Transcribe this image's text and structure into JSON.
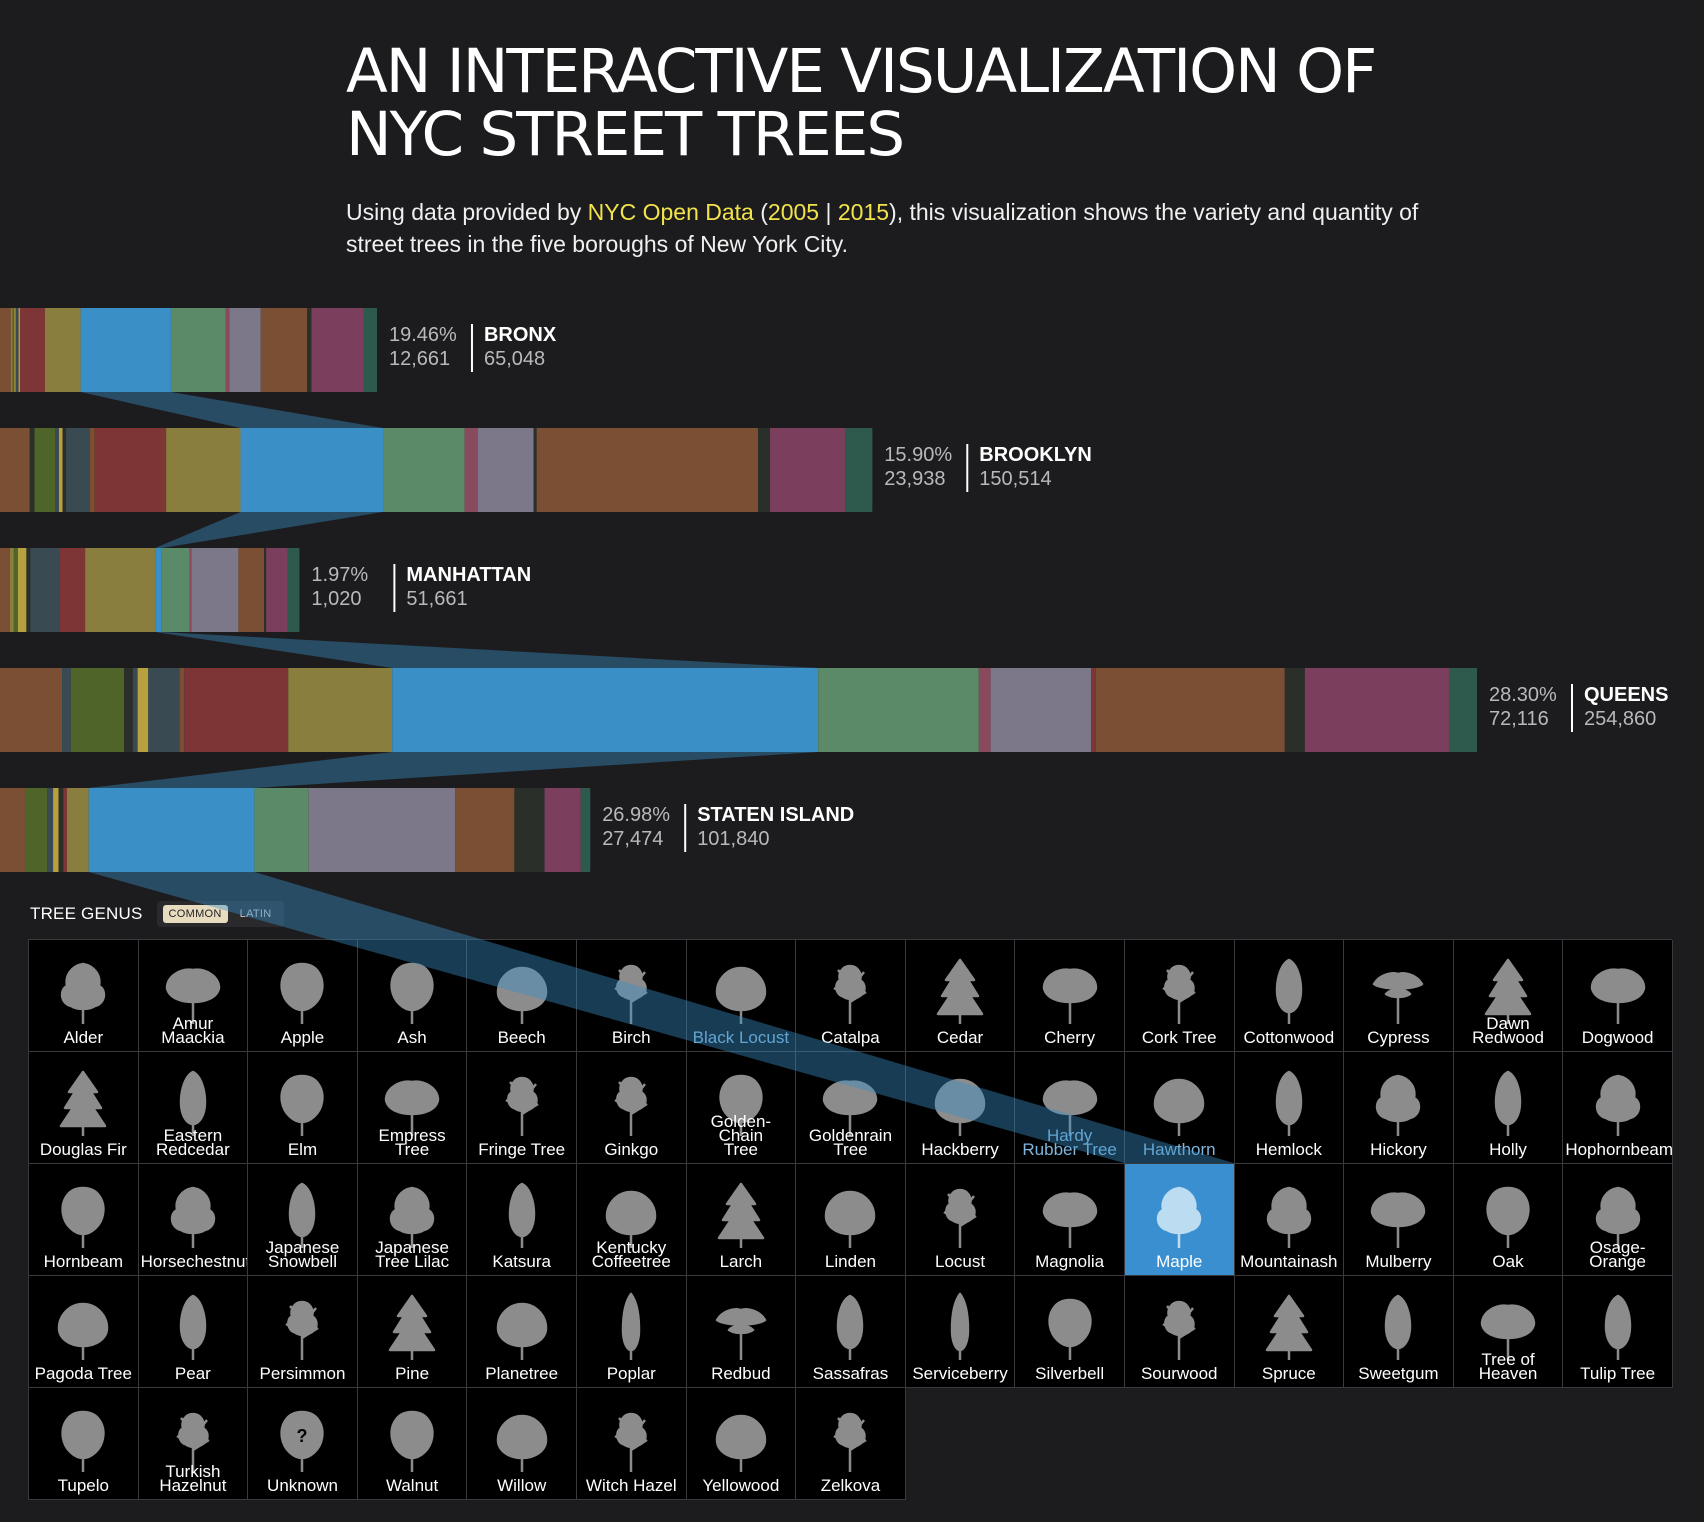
{
  "title_lines": [
    "AN INTERACTIVE VISUALIZATION OF",
    "NYC STREET TREES"
  ],
  "subtitle": {
    "pre": "Using data provided by ",
    "link_source": "NYC Open Data",
    "mid1": " (",
    "link_2005": "2005",
    "sep": " | ",
    "link_2015": "2015",
    "post": "), this visualization shows the variety and quantity of street trees in the five boroughs of New York City."
  },
  "palette": {
    "brown": "#7b4f33",
    "olive": "#8a7e3e",
    "green": "#4f6428",
    "red": "#7e3535",
    "blue": "#3a8fc6",
    "sage": "#5b8a68",
    "lavender": "#7c7789",
    "plum": "#7b3f5d",
    "teal": "#2e5a4e",
    "dark": "#2a2f2a",
    "slate": "#3a4a52",
    "mustard": "#b7a040",
    "rose": "#8a4a5e"
  },
  "chart_data": {
    "type": "bar",
    "orientation": "horizontal-stacked",
    "highlighted_genus": "Maple",
    "boroughs": [
      {
        "name": "BRONX",
        "pct": "19.46%",
        "count": "12,661",
        "total": "65,048",
        "total_value": 65048,
        "highlight_value": 12661,
        "segments": [
          {
            "c": "brown",
            "v": 1500
          },
          {
            "c": "olive",
            "v": 300
          },
          {
            "c": "green",
            "v": 200
          },
          {
            "c": "mustard",
            "v": 200
          },
          {
            "c": "slate",
            "v": 400
          },
          {
            "c": "mustard",
            "v": 200
          },
          {
            "c": "red",
            "v": 3500
          },
          {
            "c": "olive",
            "v": 5000
          },
          {
            "c": "blue",
            "v": 12661
          },
          {
            "c": "sage",
            "v": 7700
          },
          {
            "c": "rose",
            "v": 500
          },
          {
            "c": "lavender",
            "v": 4400
          },
          {
            "c": "brown",
            "v": 6500
          },
          {
            "c": "dark",
            "v": 600
          },
          {
            "c": "plum",
            "v": 7300
          },
          {
            "c": "teal",
            "v": 1887
          }
        ]
      },
      {
        "name": "BROOKLYN",
        "pct": "15.90%",
        "count": "23,938",
        "total": "150,514",
        "total_value": 150514,
        "highlight_value": 23938,
        "segments": [
          {
            "c": "brown",
            "v": 5000
          },
          {
            "c": "dark",
            "v": 800
          },
          {
            "c": "green",
            "v": 3500
          },
          {
            "c": "slate",
            "v": 600
          },
          {
            "c": "mustard",
            "v": 600
          },
          {
            "c": "dark",
            "v": 600
          },
          {
            "c": "slate",
            "v": 4000
          },
          {
            "c": "brown",
            "v": 800
          },
          {
            "c": "red",
            "v": 12000
          },
          {
            "c": "olive",
            "v": 12500
          },
          {
            "c": "blue",
            "v": 23938
          },
          {
            "c": "sage",
            "v": 13700
          },
          {
            "c": "rose",
            "v": 2200
          },
          {
            "c": "lavender",
            "v": 9400
          },
          {
            "c": "dark",
            "v": 500
          },
          {
            "c": "brown",
            "v": 37200
          },
          {
            "c": "dark",
            "v": 2000
          },
          {
            "c": "plum",
            "v": 12600
          },
          {
            "c": "teal",
            "v": 4576
          }
        ]
      },
      {
        "name": "MANHATTAN",
        "pct": "1.97%",
        "count": "1,020",
        "total": "51,661",
        "total_value": 51661,
        "highlight_value": 1020,
        "segments": [
          {
            "c": "brown",
            "v": 1500
          },
          {
            "c": "olive",
            "v": 600
          },
          {
            "c": "green",
            "v": 600
          },
          {
            "c": "mustard",
            "v": 1300
          },
          {
            "c": "dark",
            "v": 600
          },
          {
            "c": "slate",
            "v": 4500
          },
          {
            "c": "red",
            "v": 3800
          },
          {
            "c": "olive",
            "v": 10600
          },
          {
            "c": "blue",
            "v": 1020
          },
          {
            "c": "sage",
            "v": 4200
          },
          {
            "c": "rose",
            "v": 300
          },
          {
            "c": "lavender",
            "v": 7100
          },
          {
            "c": "brown",
            "v": 3900
          },
          {
            "c": "dark",
            "v": 300
          },
          {
            "c": "plum",
            "v": 3300
          },
          {
            "c": "teal",
            "v": 1741
          }
        ]
      },
      {
        "name": "QUEENS",
        "pct": "28.30%",
        "count": "72,116",
        "total": "254,860",
        "total_value": 254860,
        "highlight_value": 72116,
        "segments": [
          {
            "c": "brown",
            "v": 10500
          },
          {
            "c": "slate",
            "v": 1500
          },
          {
            "c": "green",
            "v": 9000
          },
          {
            "c": "dark",
            "v": 1500
          },
          {
            "c": "slate",
            "v": 800
          },
          {
            "c": "mustard",
            "v": 1800
          },
          {
            "c": "slate",
            "v": 5300
          },
          {
            "c": "brown",
            "v": 800
          },
          {
            "c": "red",
            "v": 17600
          },
          {
            "c": "olive",
            "v": 17600
          },
          {
            "c": "blue",
            "v": 72116
          },
          {
            "c": "sage",
            "v": 27200
          },
          {
            "c": "rose",
            "v": 2000
          },
          {
            "c": "lavender",
            "v": 17000
          },
          {
            "c": "red",
            "v": 800
          },
          {
            "c": "brown",
            "v": 32000
          },
          {
            "c": "dark",
            "v": 3400
          },
          {
            "c": "plum",
            "v": 24400
          },
          {
            "c": "teal",
            "v": 4744
          }
        ]
      },
      {
        "name": "STATEN ISLAND",
        "pct": "26.98%",
        "count": "27,474",
        "total": "101,840",
        "total_value": 101840,
        "highlight_value": 27474,
        "segments": [
          {
            "c": "brown",
            "v": 4300
          },
          {
            "c": "green",
            "v": 3500
          },
          {
            "c": "slate",
            "v": 1000
          },
          {
            "c": "mustard",
            "v": 900
          },
          {
            "c": "dark",
            "v": 800
          },
          {
            "c": "red",
            "v": 600
          },
          {
            "c": "olive",
            "v": 3600
          },
          {
            "c": "blue",
            "v": 27474
          },
          {
            "c": "sage",
            "v": 9000
          },
          {
            "c": "lavender",
            "v": 24300
          },
          {
            "c": "brown",
            "v": 9800
          },
          {
            "c": "dark",
            "v": 5000
          },
          {
            "c": "plum",
            "v": 6000
          },
          {
            "c": "teal",
            "v": 1566
          }
        ]
      }
    ]
  },
  "genus": {
    "label": "TREE GENUS",
    "toggle_common": "COMMON",
    "toggle_latin": "LATIN",
    "selected": "Maple",
    "items": [
      {
        "name": "Alder",
        "icon": "broadleaf-tree-icon"
      },
      {
        "name": "Amur\nMaackia",
        "icon": "spreading-tree-icon"
      },
      {
        "name": "Apple",
        "icon": "round-tree-icon"
      },
      {
        "name": "Ash",
        "icon": "round-tree-icon"
      },
      {
        "name": "Beech",
        "icon": "wide-tree-icon"
      },
      {
        "name": "Birch",
        "icon": "sparse-tree-icon"
      },
      {
        "name": "Black Locust",
        "icon": "wide-tree-icon"
      },
      {
        "name": "Catalpa",
        "icon": "sparse-tree-icon"
      },
      {
        "name": "Cedar",
        "icon": "conifer-tree-icon"
      },
      {
        "name": "Cherry",
        "icon": "spreading-tree-icon"
      },
      {
        "name": "Cork Tree",
        "icon": "sparse-tree-icon"
      },
      {
        "name": "Cottonwood",
        "icon": "tall-tree-icon"
      },
      {
        "name": "Cypress",
        "icon": "flat-tree-icon"
      },
      {
        "name": "Dawn\nRedwood",
        "icon": "conifer-tree-icon"
      },
      {
        "name": "Dogwood",
        "icon": "spreading-tree-icon"
      },
      {
        "name": "Douglas Fir",
        "icon": "conifer-tree-icon"
      },
      {
        "name": "Eastern\nRedcedar",
        "icon": "tall-tree-icon"
      },
      {
        "name": "Elm",
        "icon": "round-tree-icon"
      },
      {
        "name": "Empress\nTree",
        "icon": "spreading-tree-icon"
      },
      {
        "name": "Fringe Tree",
        "icon": "sparse-tree-icon"
      },
      {
        "name": "Ginkgo",
        "icon": "sparse-tree-icon"
      },
      {
        "name": "Golden-Chain\nTree",
        "icon": "round-tree-icon"
      },
      {
        "name": "Goldenrain\nTree",
        "icon": "spreading-tree-icon"
      },
      {
        "name": "Hackberry",
        "icon": "wide-tree-icon"
      },
      {
        "name": "Hardy\nRubber Tree",
        "icon": "spreading-tree-icon"
      },
      {
        "name": "Hawthorn",
        "icon": "wide-tree-icon"
      },
      {
        "name": "Hemlock",
        "icon": "tall-tree-icon"
      },
      {
        "name": "Hickory",
        "icon": "broadleaf-tree-icon"
      },
      {
        "name": "Holly",
        "icon": "tall-tree-icon"
      },
      {
        "name": "Hophornbeam",
        "icon": "broadleaf-tree-icon"
      },
      {
        "name": "Hornbeam",
        "icon": "round-tree-icon"
      },
      {
        "name": "Horsechestnut",
        "icon": "broadleaf-tree-icon"
      },
      {
        "name": "Japanese\nSnowbell",
        "icon": "tall-tree-icon"
      },
      {
        "name": "Japanese\nTree Lilac",
        "icon": "broadleaf-tree-icon"
      },
      {
        "name": "Katsura",
        "icon": "tall-tree-icon"
      },
      {
        "name": "Kentucky\nCoffeetree",
        "icon": "wide-tree-icon"
      },
      {
        "name": "Larch",
        "icon": "conifer-tree-icon"
      },
      {
        "name": "Linden",
        "icon": "wide-tree-icon"
      },
      {
        "name": "Locust",
        "icon": "sparse-tree-icon"
      },
      {
        "name": "Magnolia",
        "icon": "spreading-tree-icon"
      },
      {
        "name": "Maple",
        "icon": "broadleaf-tree-icon"
      },
      {
        "name": "Mountainash",
        "icon": "broadleaf-tree-icon"
      },
      {
        "name": "Mulberry",
        "icon": "spreading-tree-icon"
      },
      {
        "name": "Oak",
        "icon": "round-tree-icon"
      },
      {
        "name": "Osage-\nOrange",
        "icon": "broadleaf-tree-icon"
      },
      {
        "name": "Pagoda Tree",
        "icon": "wide-tree-icon"
      },
      {
        "name": "Pear",
        "icon": "tall-tree-icon"
      },
      {
        "name": "Persimmon",
        "icon": "sparse-tree-icon"
      },
      {
        "name": "Pine",
        "icon": "conifer-tree-icon"
      },
      {
        "name": "Planetree",
        "icon": "wide-tree-icon"
      },
      {
        "name": "Poplar",
        "icon": "columnar-tree-icon"
      },
      {
        "name": "Redbud",
        "icon": "flat-tree-icon"
      },
      {
        "name": "Sassafras",
        "icon": "tall-tree-icon"
      },
      {
        "name": "Serviceberry",
        "icon": "columnar-tree-icon"
      },
      {
        "name": "Silverbell",
        "icon": "round-tree-icon"
      },
      {
        "name": "Sourwood",
        "icon": "sparse-tree-icon"
      },
      {
        "name": "Spruce",
        "icon": "conifer-tree-icon"
      },
      {
        "name": "Sweetgum",
        "icon": "tall-tree-icon"
      },
      {
        "name": "Tree of\nHeaven",
        "icon": "spreading-tree-icon"
      },
      {
        "name": "Tulip Tree",
        "icon": "tall-tree-icon"
      },
      {
        "name": "Tupelo",
        "icon": "round-tree-icon"
      },
      {
        "name": "Turkish\nHazelnut",
        "icon": "sparse-tree-icon"
      },
      {
        "name": "Unknown",
        "icon": "unknown-tree-icon"
      },
      {
        "name": "Walnut",
        "icon": "round-tree-icon"
      },
      {
        "name": "Willow",
        "icon": "wide-tree-icon"
      },
      {
        "name": "Witch Hazel",
        "icon": "sparse-tree-icon"
      },
      {
        "name": "Yellowood",
        "icon": "wide-tree-icon"
      },
      {
        "name": "Zelkova",
        "icon": "sparse-tree-icon"
      }
    ]
  }
}
